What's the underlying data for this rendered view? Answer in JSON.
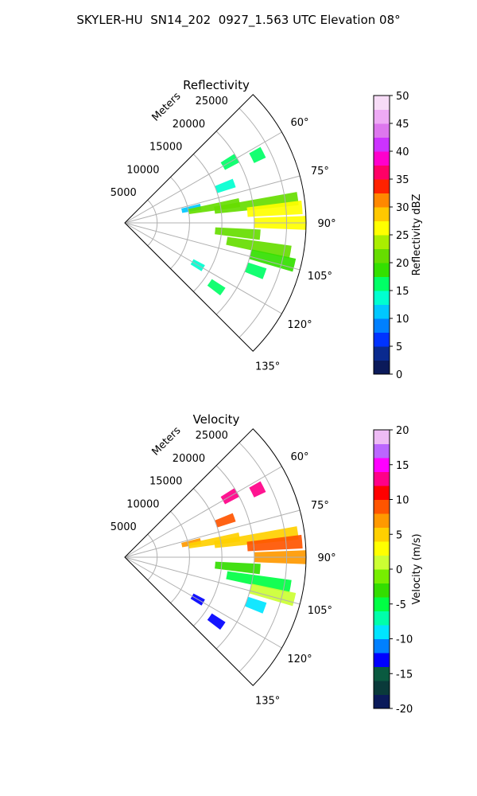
{
  "figure": {
    "title": "SKYLER-HU  SN14_202  0927_1.563 UTC Elevation 08°"
  },
  "chart_data": [
    {
      "type": "heatmap",
      "projection": "polar-sector",
      "title": "Reflectivity",
      "range_label": "Meters",
      "range_ticks": [
        5000,
        10000,
        15000,
        20000,
        25000
      ],
      "range_max": 28000,
      "azimuth_ticks": [
        "60°",
        "75°",
        "90°",
        "105°",
        "120°",
        "135°"
      ],
      "azimuth_range": [
        45,
        135
      ],
      "grid": true,
      "colorbar": {
        "label": "Reflectivity dBZ",
        "min": 0,
        "max": 50,
        "ticks": [
          0,
          5,
          10,
          15,
          20,
          25,
          30,
          35,
          40,
          45,
          50
        ],
        "colors": [
          "#0b1a5a",
          "#0a2a8f",
          "#0033ff",
          "#0080ff",
          "#00c8ff",
          "#00ffd0",
          "#00ff66",
          "#33e000",
          "#66dd00",
          "#aaee00",
          "#ffff00",
          "#ffc800",
          "#ff8800",
          "#ff2200",
          "#ff0066",
          "#ff00cc",
          "#cc33ff",
          "#dd77ee",
          "#eeaaf5",
          "#f7dcf7"
        ]
      },
      "echoes": [
        {
          "az": 60,
          "r": [
            17500,
            20000
          ],
          "value": 17
        },
        {
          "az": 63,
          "r": [
            22000,
            24000
          ],
          "value": 16
        },
        {
          "az": 70,
          "r": [
            15000,
            18000
          ],
          "value": 14
        },
        {
          "az": 78,
          "r": [
            9000,
            12000
          ],
          "value": 11
        },
        {
          "az": 80,
          "r": [
            10000,
            18000
          ],
          "value": 20
        },
        {
          "az": 82,
          "r": [
            14000,
            27000
          ],
          "value": 22
        },
        {
          "az": 85,
          "r": [
            19000,
            27500
          ],
          "value": 26
        },
        {
          "az": 90,
          "r": [
            20000,
            28000
          ],
          "value": 27
        },
        {
          "az": 95,
          "r": [
            14000,
            21000
          ],
          "value": 22
        },
        {
          "az": 100,
          "r": [
            16000,
            26000
          ],
          "value": 21
        },
        {
          "az": 104,
          "r": [
            20000,
            27000
          ],
          "value": 19
        },
        {
          "az": 110,
          "r": [
            20000,
            23000
          ],
          "value": 16
        },
        {
          "az": 120,
          "r": [
            12000,
            14000
          ],
          "value": 14
        },
        {
          "az": 125,
          "r": [
            16000,
            18500
          ],
          "value": 15
        }
      ]
    },
    {
      "type": "heatmap",
      "projection": "polar-sector",
      "title": "Velocity",
      "range_label": "Meters",
      "range_ticks": [
        5000,
        10000,
        15000,
        20000,
        25000
      ],
      "range_max": 28000,
      "azimuth_ticks": [
        "60°",
        "75°",
        "90°",
        "105°",
        "120°",
        "135°"
      ],
      "azimuth_range": [
        45,
        135
      ],
      "grid": true,
      "colorbar": {
        "label": "Velocity (m/s)",
        "min": -20,
        "max": 20,
        "ticks": [
          -20,
          -15,
          -10,
          -5,
          0,
          5,
          10,
          15,
          20
        ],
        "colors": [
          "#0b1a5a",
          "#0a3a3a",
          "#0a5a40",
          "#0000ff",
          "#0080ff",
          "#00e5ff",
          "#00ffaa",
          "#00ff44",
          "#33dd00",
          "#77ee00",
          "#ccff33",
          "#ffff00",
          "#ffd000",
          "#ff9900",
          "#ff5500",
          "#ff0000",
          "#ff0088",
          "#ff00ff",
          "#bb66ff",
          "#eebbf5"
        ]
      },
      "echoes": [
        {
          "az": 60,
          "r": [
            17500,
            20000
          ],
          "value": 13
        },
        {
          "az": 63,
          "r": [
            22000,
            24000
          ],
          "value": 12
        },
        {
          "az": 70,
          "r": [
            15000,
            18000
          ],
          "value": 9
        },
        {
          "az": 78,
          "r": [
            9000,
            12000
          ],
          "value": 6
        },
        {
          "az": 80,
          "r": [
            10000,
            18000
          ],
          "value": 4
        },
        {
          "az": 82,
          "r": [
            14000,
            27000
          ],
          "value": 5
        },
        {
          "az": 85,
          "r": [
            19000,
            27500
          ],
          "value": 8
        },
        {
          "az": 90,
          "r": [
            20000,
            28000
          ],
          "value": 6
        },
        {
          "az": 95,
          "r": [
            14000,
            21000
          ],
          "value": -3
        },
        {
          "az": 100,
          "r": [
            16000,
            26000
          ],
          "value": -6
        },
        {
          "az": 104,
          "r": [
            20000,
            27000
          ],
          "value": 1
        },
        {
          "az": 110,
          "r": [
            20000,
            23000
          ],
          "value": -9
        },
        {
          "az": 120,
          "r": [
            12000,
            14000
          ],
          "value": -13
        },
        {
          "az": 125,
          "r": [
            16000,
            18500
          ],
          "value": -14
        }
      ]
    }
  ]
}
